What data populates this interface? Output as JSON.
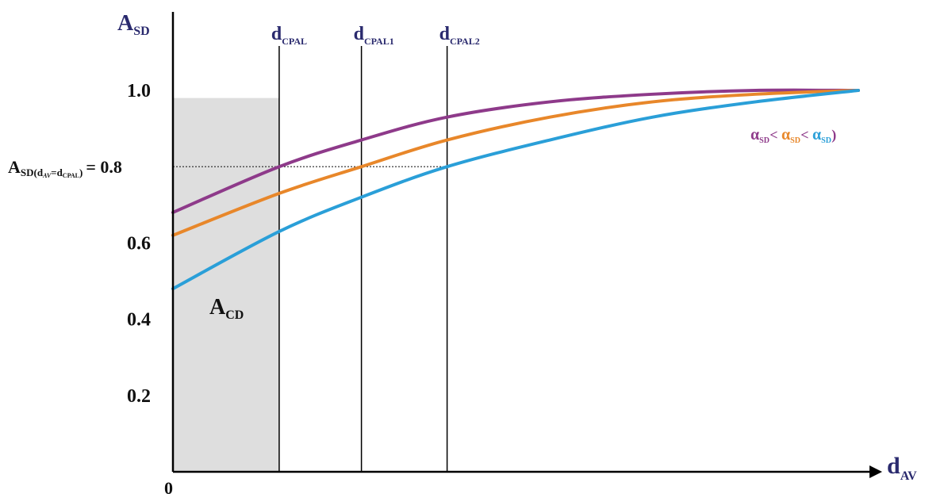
{
  "chart_data": {
    "type": "line",
    "y_axis": {
      "main": "A",
      "sub": "SD"
    },
    "x_axis": {
      "main": "d",
      "sub": "AV"
    },
    "origin_label": "0",
    "ylim": [
      0,
      1.1
    ],
    "xlim": [
      0,
      1
    ],
    "y_ticks": [
      {
        "value": 1.0,
        "label": "1.0"
      },
      {
        "value": 0.6,
        "label": "0.6"
      },
      {
        "value": 0.4,
        "label": "0.4"
      },
      {
        "value": 0.2,
        "label": "0.2"
      }
    ],
    "reference_line": {
      "value": 0.8,
      "value_label": "= 0.8",
      "label_main": "A",
      "label_sub": "SD(d",
      "label_subsub": "AV",
      "label_sub2": "=d",
      "label_subsub2": "CPAL",
      "label_close": ")"
    },
    "vertical_markers": [
      {
        "x": 0.155,
        "main": "d",
        "sub": "CPAL"
      },
      {
        "x": 0.275,
        "main": "d",
        "sub": "CPAL1"
      },
      {
        "x": 0.4,
        "main": "d",
        "sub": "CPAL2"
      }
    ],
    "shaded_region": {
      "x0": 0,
      "x1": 0.155,
      "y_top": 0.98,
      "label_main": "A",
      "label_sub": "CD"
    },
    "legend": {
      "items": [
        {
          "main": "α",
          "sub": "SD",
          "color": "#8e3a8a"
        },
        {
          "text": " < "
        },
        {
          "main": "α",
          "sub": "SD",
          "color": "#e8872a"
        },
        {
          "text": " < "
        },
        {
          "main": "α",
          "sub": "SD",
          "color": "#2a9fd8"
        },
        {
          "text": ")"
        }
      ],
      "text_color": "#8e3a8a"
    },
    "series": [
      {
        "color": "#8e3a8a",
        "x": [
          0,
          0.155,
          0.275,
          0.4,
          0.55,
          0.7,
          0.85,
          1.0
        ],
        "y": [
          0.68,
          0.8,
          0.87,
          0.93,
          0.97,
          0.99,
          1.0,
          1.0
        ]
      },
      {
        "color": "#e8872a",
        "x": [
          0,
          0.155,
          0.275,
          0.4,
          0.55,
          0.7,
          0.85,
          1.0
        ],
        "y": [
          0.62,
          0.73,
          0.8,
          0.87,
          0.93,
          0.97,
          0.99,
          1.0
        ]
      },
      {
        "color": "#2a9fd8",
        "x": [
          0,
          0.155,
          0.275,
          0.4,
          0.55,
          0.7,
          0.85,
          1.0
        ],
        "y": [
          0.48,
          0.63,
          0.72,
          0.8,
          0.87,
          0.93,
          0.97,
          1.0
        ]
      }
    ]
  }
}
